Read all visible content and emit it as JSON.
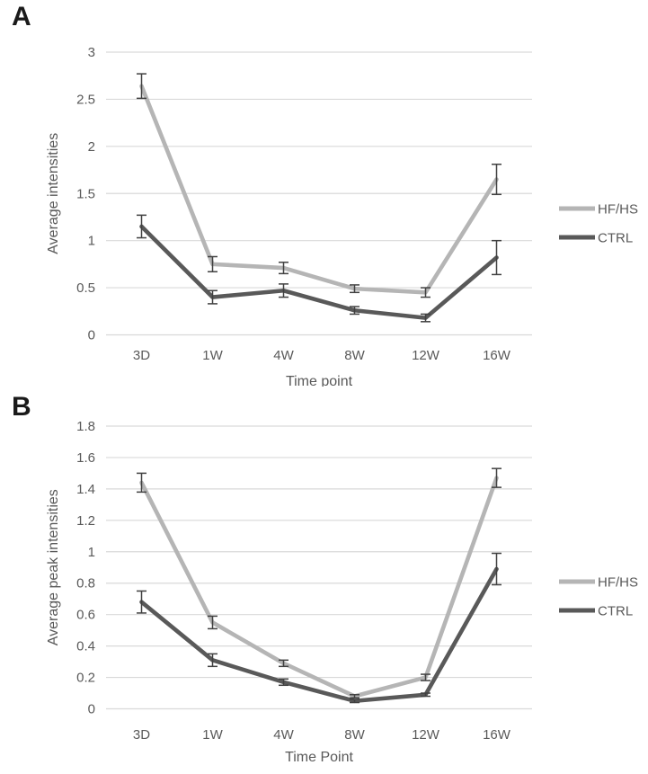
{
  "figure": {
    "background_color": "#ffffff",
    "text_color": "#595959",
    "grid_color": "#d9d9d9",
    "error_bar_color": "#404040",
    "panel_label_color": "#1a1a1a"
  },
  "chart_data": [
    {
      "type": "line",
      "panel": "A",
      "categories": [
        "3D",
        "1W",
        "4W",
        "8W",
        "12W",
        "16W"
      ],
      "series": [
        {
          "name": "HF/HS",
          "color": "#b5b5b5",
          "values": [
            2.64,
            0.75,
            0.71,
            0.49,
            0.45,
            1.65
          ],
          "errors": [
            0.13,
            0.08,
            0.06,
            0.04,
            0.05,
            0.16
          ]
        },
        {
          "name": "CTRL",
          "color": "#595959",
          "values": [
            1.15,
            0.4,
            0.47,
            0.26,
            0.18,
            0.82
          ],
          "errors": [
            0.12,
            0.07,
            0.07,
            0.04,
            0.04,
            0.18
          ]
        }
      ],
      "xlabel": "Time point",
      "ylabel": "Average intensities",
      "ylim": [
        0,
        3
      ],
      "ytick_step": 0.5,
      "ytick_labels": [
        "3",
        "2.5",
        "2",
        "1.5",
        "1",
        "0.5",
        "0"
      ],
      "grid": true,
      "error_bars": true,
      "legend_position": "right",
      "legend": [
        "HF/HS",
        "CTRL"
      ]
    },
    {
      "type": "line",
      "panel": "B",
      "categories": [
        "3D",
        "1W",
        "4W",
        "8W",
        "12W",
        "16W"
      ],
      "series": [
        {
          "name": "HF/HS",
          "color": "#b5b5b5",
          "values": [
            1.44,
            0.55,
            0.29,
            0.08,
            0.2,
            1.47
          ],
          "errors": [
            0.06,
            0.04,
            0.02,
            0.01,
            0.02,
            0.06
          ]
        },
        {
          "name": "CTRL",
          "color": "#595959",
          "values": [
            0.68,
            0.31,
            0.17,
            0.05,
            0.09,
            0.89
          ],
          "errors": [
            0.07,
            0.04,
            0.02,
            0.01,
            0.01,
            0.1
          ]
        }
      ],
      "xlabel": "Time Point",
      "ylabel": "Average peak intensities",
      "ylim": [
        0,
        1.8
      ],
      "ytick_step": 0.2,
      "ytick_labels": [
        "1.8",
        "1.6",
        "1.4",
        "1.2",
        "1",
        "0.8",
        "0.6",
        "0.4",
        "0.2",
        "0"
      ],
      "grid": true,
      "error_bars": true,
      "legend_position": "right",
      "legend": [
        "HF/HS",
        "CTRL"
      ]
    }
  ]
}
